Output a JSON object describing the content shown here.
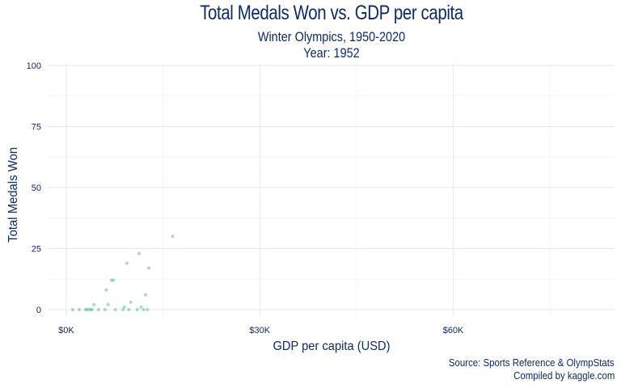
{
  "chart_data": {
    "type": "scatter",
    "title": "Total Medals Won vs. GDP per capita",
    "subtitle": "Winter Olympics, 1950-2020",
    "subtitle2": "Year: 1952",
    "xlabel": "GDP per capita (USD)",
    "ylabel": "Total Medals Won",
    "caption1": "Source: Sports Reference & OlympStats",
    "caption2": "Compiled by kaggle.com",
    "xlim": [
      -3000,
      85000
    ],
    "ylim": [
      -3,
      101
    ],
    "x_ticks": [
      0,
      30000,
      60000
    ],
    "x_tick_labels": [
      "$0K",
      "$30K",
      "$60K"
    ],
    "y_ticks": [
      0,
      25,
      50,
      75,
      100
    ],
    "y_tick_labels": [
      "0",
      "25",
      "50",
      "75",
      "100"
    ],
    "grid": true,
    "point_color": "#5bbf9e",
    "points": [
      {
        "x": 1000,
        "y": 0
      },
      {
        "x": 2000,
        "y": 0
      },
      {
        "x": 3000,
        "y": 0
      },
      {
        "x": 3200,
        "y": 0
      },
      {
        "x": 3500,
        "y": 0
      },
      {
        "x": 3800,
        "y": 0
      },
      {
        "x": 4000,
        "y": 0
      },
      {
        "x": 4300,
        "y": 2
      },
      {
        "x": 5000,
        "y": 0
      },
      {
        "x": 6000,
        "y": 0
      },
      {
        "x": 6200,
        "y": 8
      },
      {
        "x": 6500,
        "y": 2
      },
      {
        "x": 7000,
        "y": 12
      },
      {
        "x": 7300,
        "y": 12
      },
      {
        "x": 7600,
        "y": 0
      },
      {
        "x": 8800,
        "y": 0
      },
      {
        "x": 9000,
        "y": 1
      },
      {
        "x": 9400,
        "y": 19
      },
      {
        "x": 9700,
        "y": 0
      },
      {
        "x": 10000,
        "y": 3
      },
      {
        "x": 11000,
        "y": 0
      },
      {
        "x": 11300,
        "y": 23
      },
      {
        "x": 11600,
        "y": 1
      },
      {
        "x": 12000,
        "y": 0
      },
      {
        "x": 12300,
        "y": 6
      },
      {
        "x": 12600,
        "y": 0
      },
      {
        "x": 12800,
        "y": 17
      },
      {
        "x": 16500,
        "y": 30
      }
    ]
  }
}
